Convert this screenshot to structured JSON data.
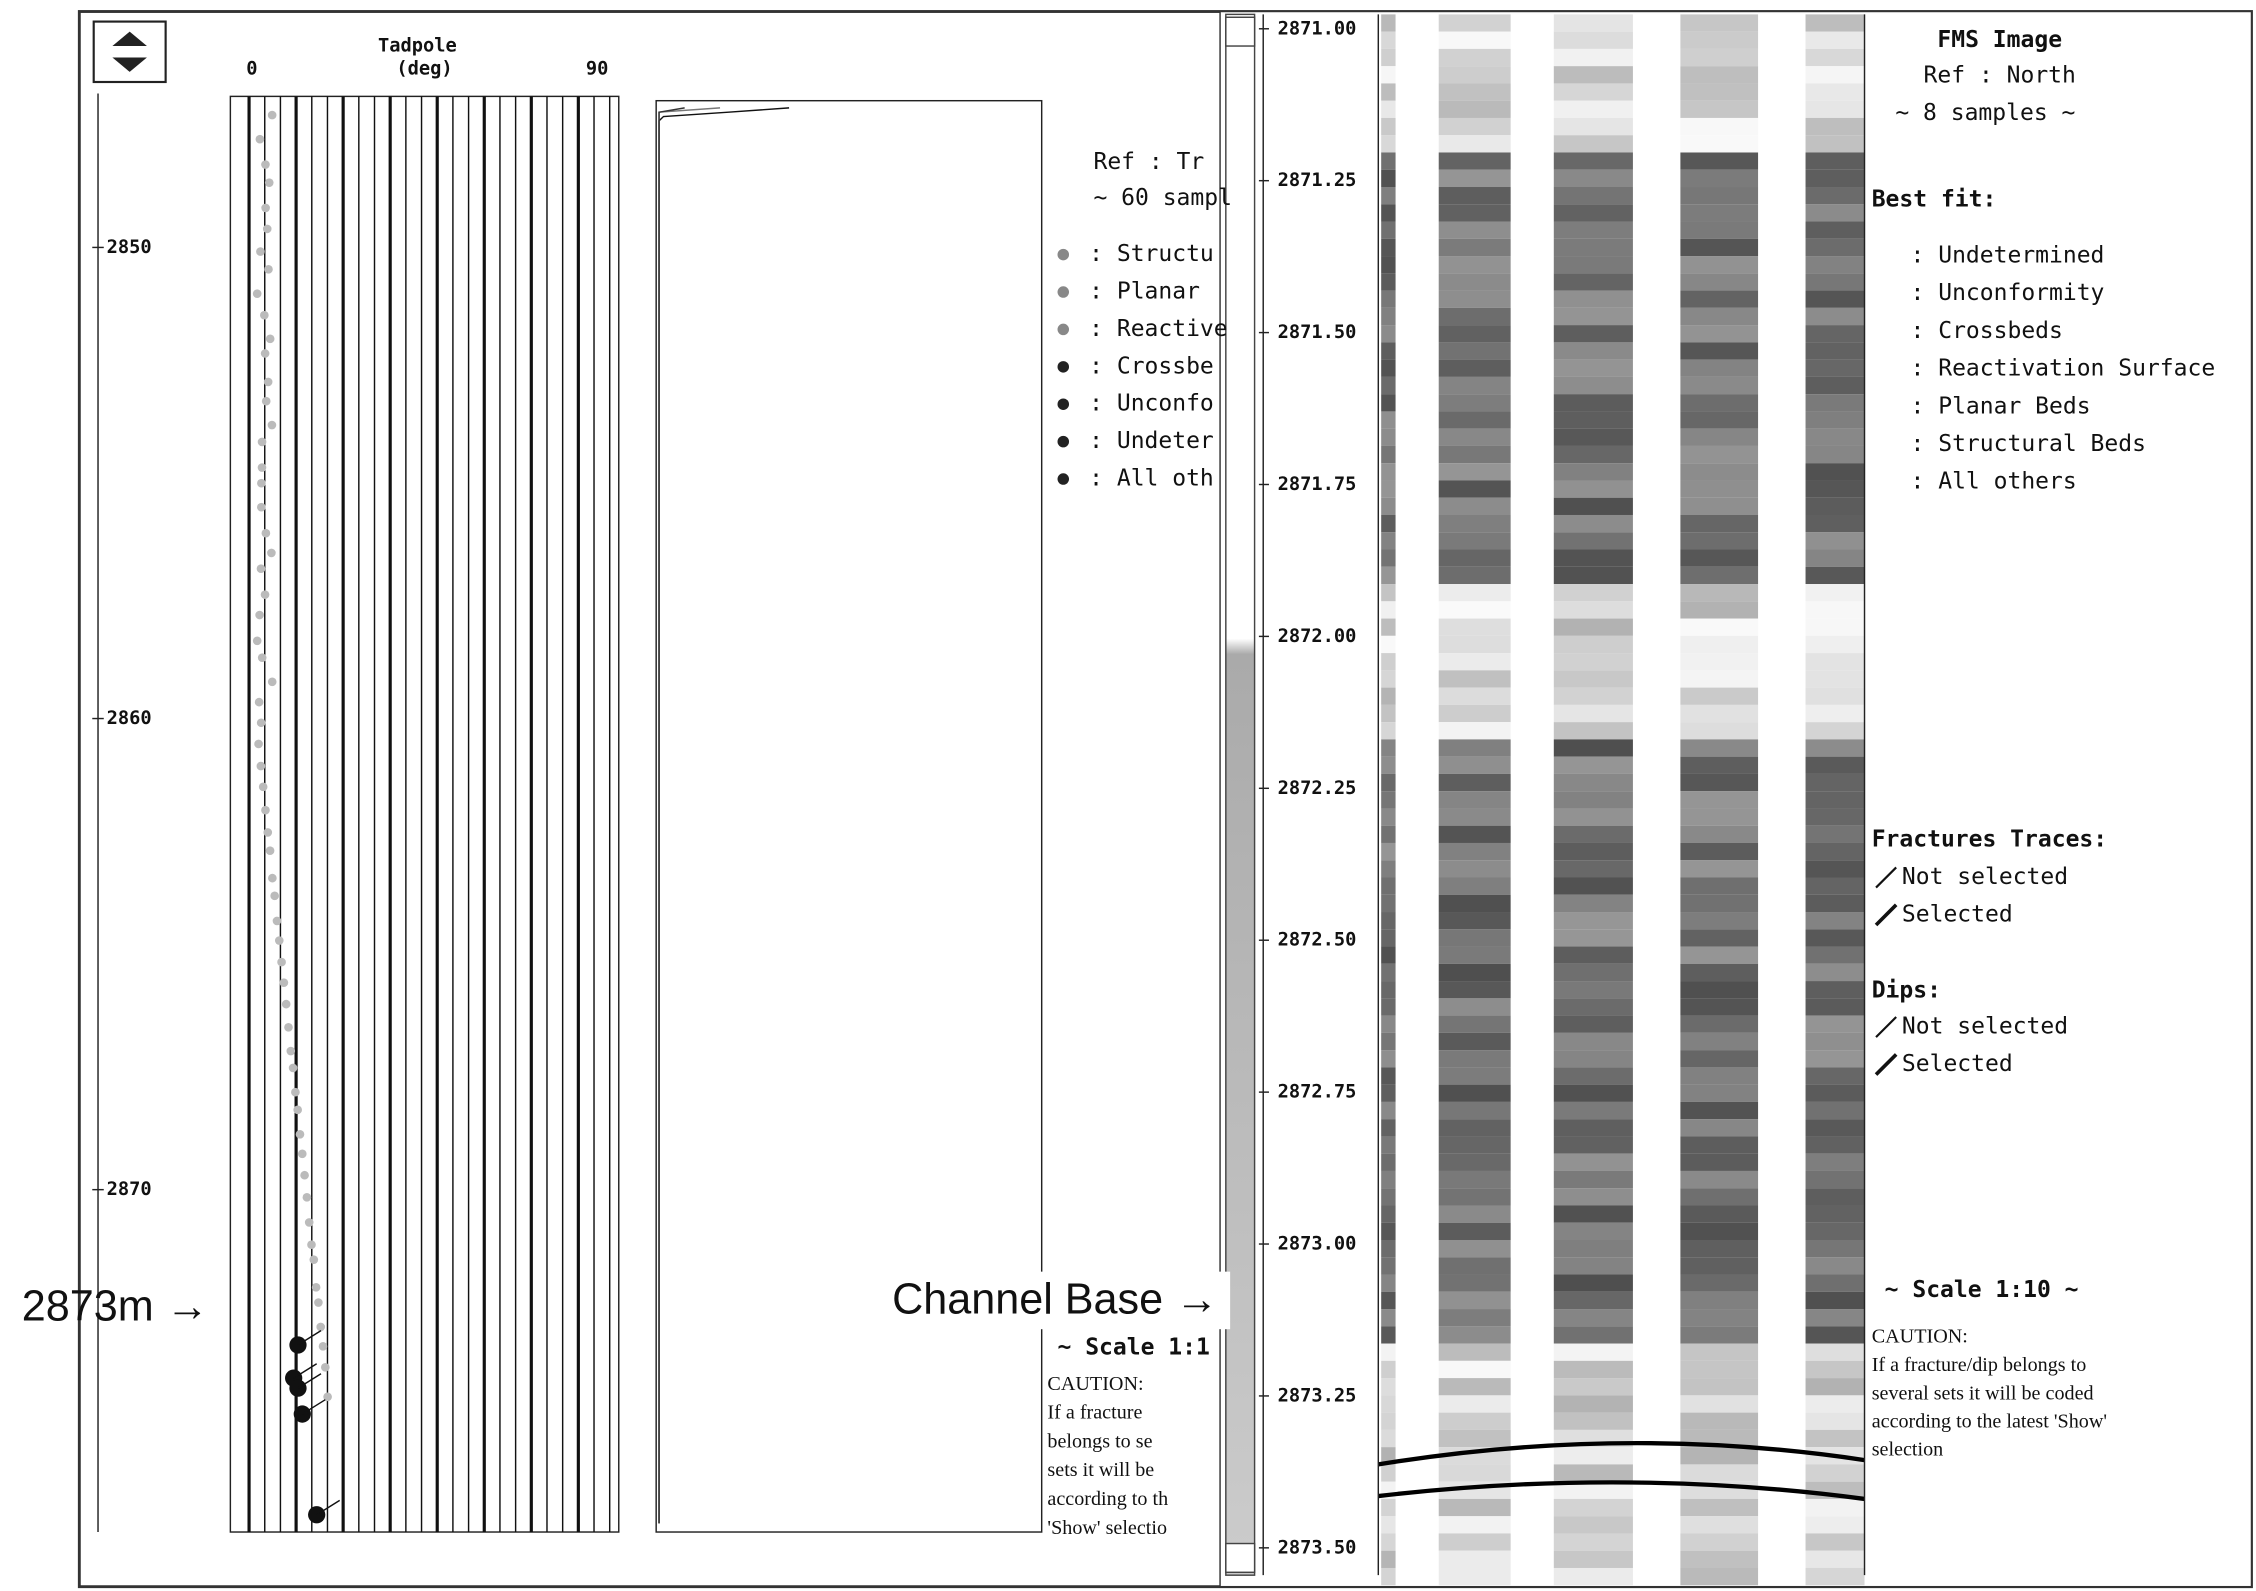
{
  "left_panel": {
    "track_title": "Tadpole",
    "track_unit": "(deg)",
    "track_min": "0",
    "track_max": "90",
    "depth_labels": [
      "2850",
      "2860",
      "2870"
    ],
    "legend_ref": "Ref : Tr",
    "legend_samples": "~ 60 sampl",
    "legend_items": [
      ": Structu",
      ": Planar",
      ": Reactive",
      ": Crossbe",
      ": Unconfo",
      ": Undeter",
      ": All oth"
    ],
    "scale": "~ Scale 1:1",
    "caution_title": "CAUTION:",
    "caution_lines": [
      " If a fracture",
      "belongs to se",
      "sets it will be",
      "according to th",
      "'Show' selectio"
    ]
  },
  "annotations": {
    "depth_marker": "2873m →",
    "channel_base": "Channel Base →"
  },
  "right_panel": {
    "depth_labels": [
      "2871.00",
      "2871.25",
      "2871.50",
      "2871.75",
      "2872.00",
      "2872.25",
      "2872.50",
      "2872.75",
      "2873.00",
      "2873.25",
      "2873.50"
    ],
    "title": "FMS Image",
    "ref": "Ref : North",
    "samples": "~ 8 samples ~",
    "best_fit_title": "Best fit:",
    "best_fit_items": [
      ": Undetermined",
      ": Unconformity",
      ": Crossbeds",
      ": Reactivation Surface",
      ": Planar Beds",
      ": Structural Beds",
      ": All others"
    ],
    "fractures_title": "Fractures Traces:",
    "fractures_items": [
      "Not selected",
      "Selected"
    ],
    "dips_title": "Dips:",
    "dips_items": [
      "Not selected",
      "Selected"
    ],
    "scale": "~ Scale 1:10 ~",
    "caution_title": "CAUTION:",
    "caution_lines": [
      "If a fracture/dip belongs to",
      "several sets it will be coded",
      "according to the latest 'Show'",
      "selection"
    ]
  }
}
